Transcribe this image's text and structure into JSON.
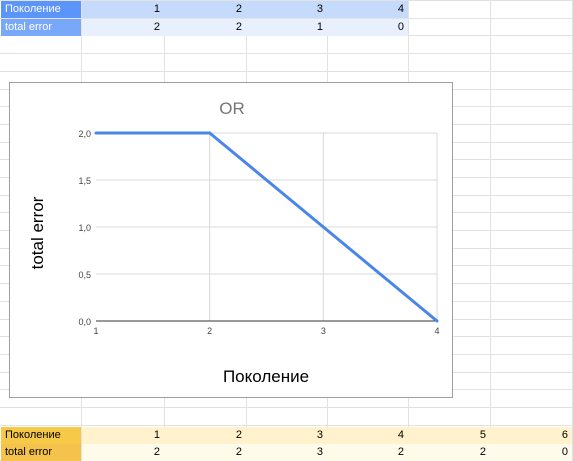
{
  "top_table": {
    "rows": [
      {
        "label": "Поколение",
        "values": [
          "1",
          "2",
          "3",
          "4"
        ]
      },
      {
        "label": "total error",
        "values": [
          "2",
          "2",
          "1",
          "0"
        ]
      }
    ]
  },
  "bottom_table": {
    "rows": [
      {
        "label": "Поколение",
        "values": [
          "1",
          "2",
          "3",
          "4",
          "5",
          "6"
        ]
      },
      {
        "label": "total error",
        "values": [
          "2",
          "2",
          "3",
          "2",
          "2",
          "0"
        ]
      }
    ]
  },
  "chart_data": {
    "type": "line",
    "title": "OR",
    "xlabel": "Поколение",
    "ylabel": "total error",
    "x": [
      1,
      2,
      3,
      4
    ],
    "series": [
      {
        "values": [
          2,
          2,
          1,
          0
        ],
        "color": "#4a86e8"
      }
    ],
    "xlim": [
      1,
      4
    ],
    "ylim": [
      0,
      2
    ],
    "x_ticks": [
      "1",
      "2",
      "3",
      "4"
    ],
    "y_ticks": [
      "0,0",
      "0,5",
      "1,0",
      "1,5",
      "2,0"
    ],
    "grid": true
  }
}
